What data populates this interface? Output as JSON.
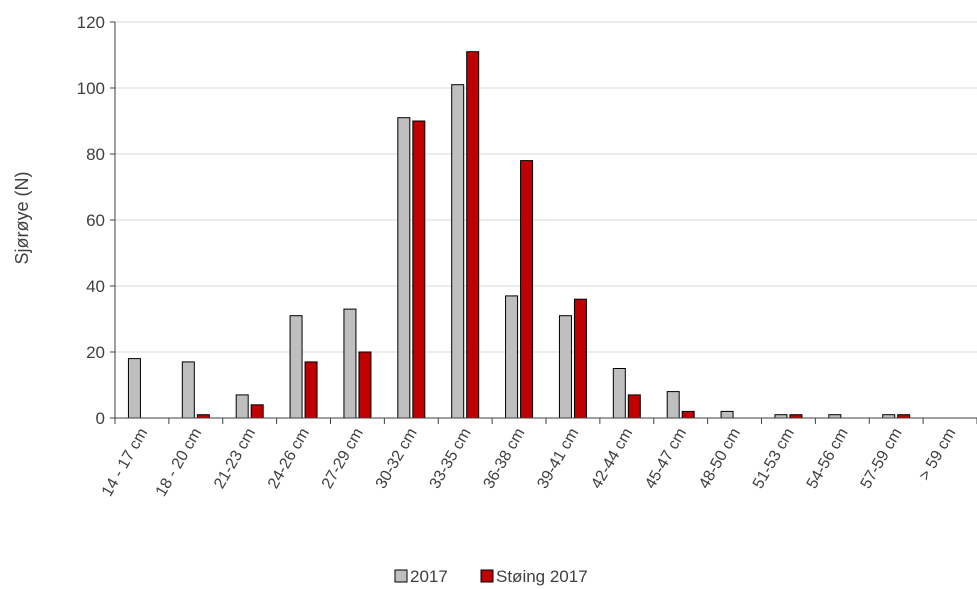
{
  "chart_data": {
    "type": "bar",
    "categories": [
      "14 - 17 cm",
      "18 - 20 cm",
      "21-23 cm",
      "24-26 cm",
      "27-29 cm",
      "30-32 cm",
      "33-35 cm",
      "36-38 cm",
      "39-41 cm",
      "42-44 cm",
      "45-47 cm",
      "48-50 cm",
      "51-53 cm",
      "54-56 cm",
      "57-59 cm",
      "> 59 cm"
    ],
    "series": [
      {
        "name": "2017",
        "color": "#bfbfbf",
        "values": [
          18,
          17,
          7,
          31,
          33,
          91,
          101,
          37,
          31,
          15,
          8,
          2,
          1,
          1,
          1,
          0
        ]
      },
      {
        "name": "Støing 2017",
        "color": "#c00000",
        "values": [
          0,
          1,
          4,
          17,
          20,
          90,
          111,
          78,
          36,
          7,
          2,
          0,
          1,
          0,
          1,
          0
        ]
      }
    ],
    "title": "",
    "xlabel": "",
    "ylabel": "Sjørøye (N)",
    "ylim": [
      0,
      120
    ],
    "yticks": [
      0,
      20,
      40,
      60,
      80,
      100,
      120
    ],
    "grid": "horizontal",
    "legend": "bottom-center"
  }
}
